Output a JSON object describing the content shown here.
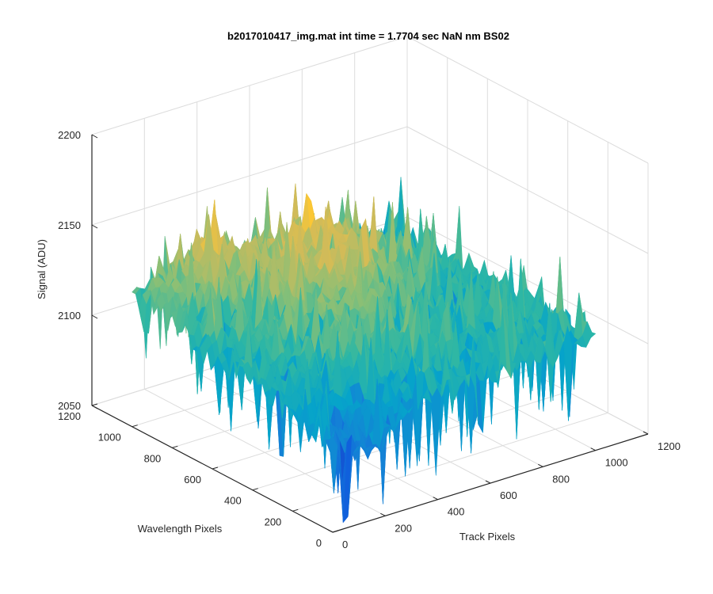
{
  "window": {
    "background": "#ffffff"
  },
  "chart_data": {
    "type": "surface",
    "title": "b2017010417_img.mat int time = 1.7704 sec  NaN nm BS02",
    "xlabel": "Track Pixels",
    "ylabel": "Wavelength Pixels",
    "zlabel": "Signal (ADU)",
    "xlim": [
      0,
      1200
    ],
    "ylim": [
      0,
      1200
    ],
    "zlim": [
      2050,
      2200
    ],
    "xticks": [
      0,
      200,
      400,
      600,
      800,
      1000,
      1200
    ],
    "yticks": [
      0,
      200,
      400,
      600,
      800,
      1000,
      1200
    ],
    "zticks": [
      2050,
      2100,
      2150,
      2200
    ],
    "xtick_labels": [
      "0",
      "200",
      "400",
      "600",
      "800",
      "1000",
      "1200"
    ],
    "ytick_labels": [
      "0",
      "200",
      "400",
      "600",
      "800",
      "1000",
      "1200"
    ],
    "ztick_labels": [
      "2050",
      "2100",
      "2150",
      "2200"
    ],
    "grid": true,
    "colormap": "parula",
    "colormap_stops": [
      "#352a87",
      "#0f5cdd",
      "#1481d6",
      "#06a4ca",
      "#2eb7a4",
      "#87bf77",
      "#d1bb59",
      "#fec832",
      "#f9fb0e"
    ],
    "surface_extent": {
      "x": [
        0,
        1000
      ],
      "y": [
        0,
        1000
      ]
    },
    "surface_model": {
      "baseline": 2115,
      "range_approx": [
        2060,
        2175
      ],
      "description_values": {
        "far_corner_peak_signal": 2168,
        "near_corner_min_signal": 2062,
        "mean_signal": 2118
      }
    }
  }
}
